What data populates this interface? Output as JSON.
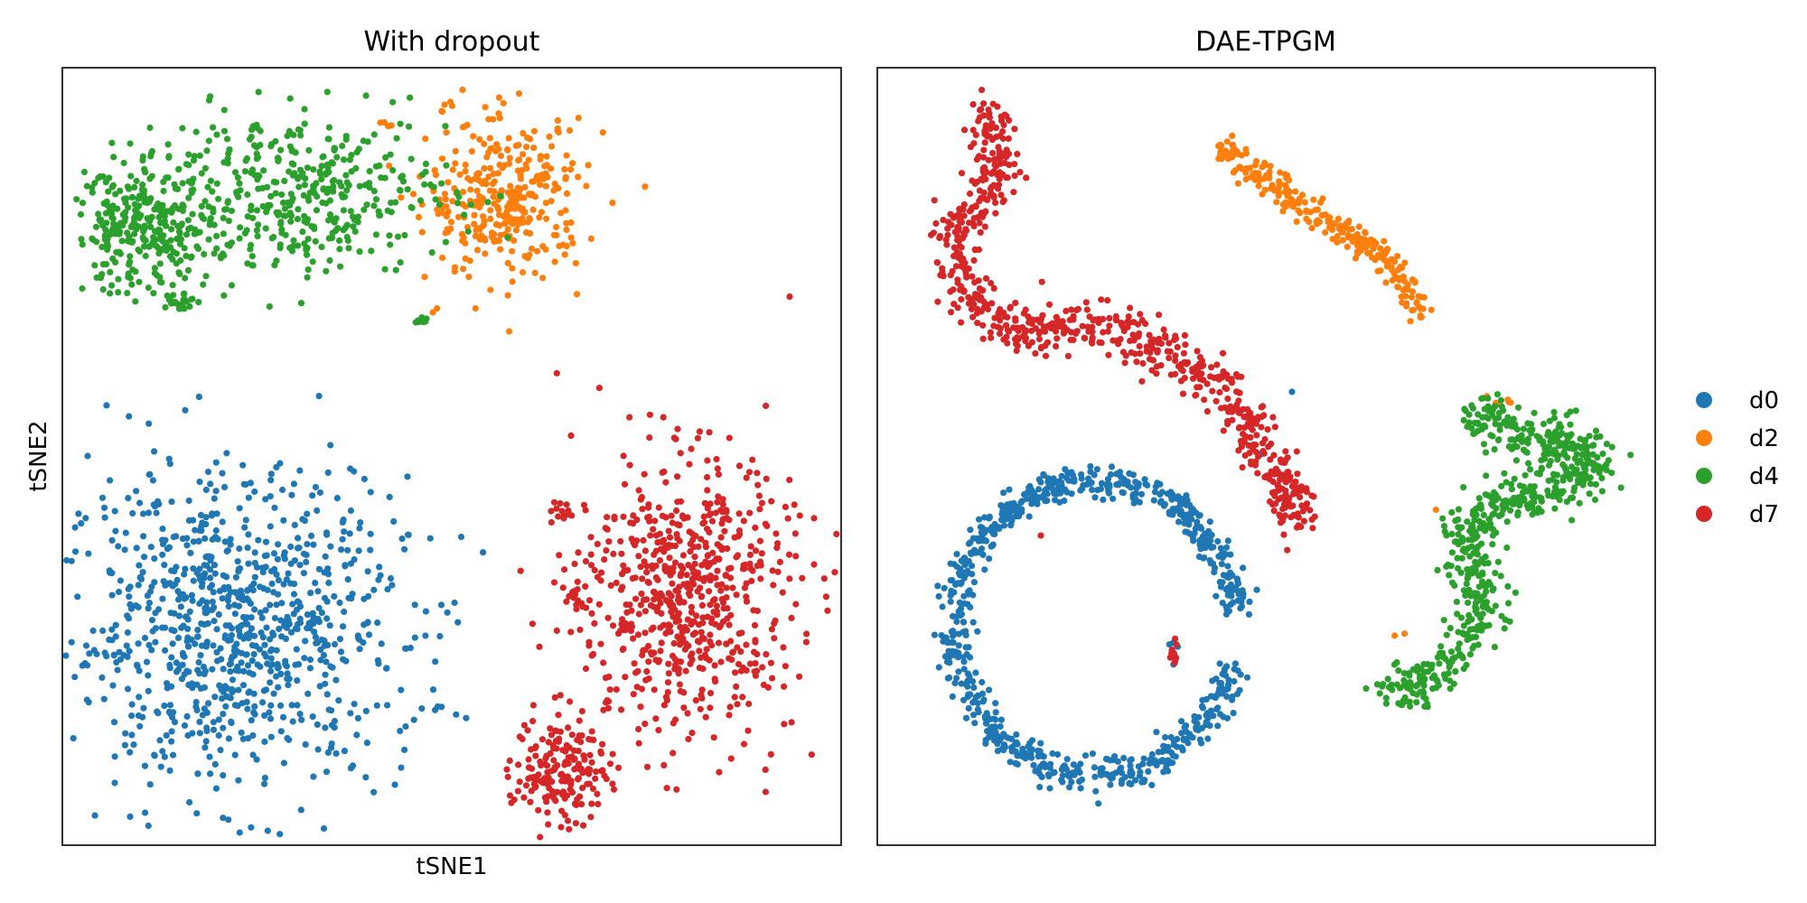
{
  "colors": {
    "d0": "#1f77b4",
    "d2": "#ff7f0e",
    "d4": "#2ca02c",
    "d7": "#d62728"
  },
  "legend": {
    "placement": "right-outside",
    "entries": [
      {
        "label": "d0",
        "color": "#1f77b4"
      },
      {
        "label": "d2",
        "color": "#ff7f0e"
      },
      {
        "label": "d4",
        "color": "#2ca02c"
      },
      {
        "label": "d7",
        "color": "#d62728"
      }
    ]
  },
  "chart_data": [
    {
      "type": "scatter",
      "title": "With dropout",
      "xlabel": "tSNE1",
      "ylabel": "tSNE2",
      "xlim": [
        0,
        100
      ],
      "ylim": [
        0,
        100
      ],
      "ticks_shown": false,
      "grid": false,
      "series": [
        {
          "name": "d0",
          "color": "#1f77b4",
          "clusters": [
            {
              "shape": "blob",
              "center": [
                22,
                28
              ],
              "spread": [
                11,
                10
              ],
              "count": 900
            },
            {
              "shape": "blob",
              "center": [
                48,
                18
              ],
              "spread": [
                0.6,
                0.5
              ],
              "count": 3
            },
            {
              "shape": "blob",
              "center": [
                44,
                15
              ],
              "spread": [
                0.6,
                0.5
              ],
              "count": 2
            }
          ]
        },
        {
          "name": "d2",
          "color": "#ff7f0e",
          "clusters": [
            {
              "shape": "blob",
              "center": [
                57,
                83
              ],
              "spread": [
                5,
                5
              ],
              "count": 330
            },
            {
              "shape": "blob",
              "center": [
                49,
                94.5
              ],
              "spread": [
                0.6,
                0.6
              ],
              "count": 5
            },
            {
              "shape": "blob",
              "center": [
                43,
                92.5
              ],
              "spread": [
                2.5,
                0.5
              ],
              "count": 4
            },
            {
              "shape": "blob",
              "center": [
                47.5,
                69
              ],
              "spread": [
                0.3,
                0.3
              ],
              "count": 2
            }
          ]
        },
        {
          "name": "d4",
          "color": "#2ca02c",
          "clusters": [
            {
              "shape": "blob",
              "center": [
                10,
                79
              ],
              "spread": [
                4.5,
                4
              ],
              "count": 280
            },
            {
              "shape": "blob",
              "center": [
                30,
                84
              ],
              "spread": [
                10,
                5
              ],
              "count": 420
            },
            {
              "shape": "blob",
              "center": [
                15,
                70
              ],
              "spread": [
                1,
                0.6
              ],
              "count": 25
            },
            {
              "shape": "blob",
              "center": [
                46,
                67.5
              ],
              "spread": [
                0.5,
                0.4
              ],
              "count": 8
            }
          ]
        },
        {
          "name": "d7",
          "color": "#d62728",
          "clusters": [
            {
              "shape": "blob",
              "center": [
                80,
                32
              ],
              "spread": [
                7,
                9
              ],
              "count": 650
            },
            {
              "shape": "blob",
              "center": [
                64,
                43
              ],
              "spread": [
                0.7,
                0.8
              ],
              "count": 12
            },
            {
              "shape": "blob",
              "center": [
                66,
                32
              ],
              "spread": [
                0.7,
                1
              ],
              "count": 14
            },
            {
              "shape": "blob",
              "center": [
                64,
                10
              ],
              "spread": [
                3,
                3.5
              ],
              "count": 180
            }
          ]
        }
      ]
    },
    {
      "type": "scatter",
      "title": "DAE-TPGM",
      "xlabel": "",
      "ylabel": "",
      "xlim": [
        0,
        100
      ],
      "ylim": [
        0,
        100
      ],
      "ticks_shown": false,
      "grid": false,
      "series": [
        {
          "name": "d0",
          "color": "#1f77b4",
          "clusters": [
            {
              "shape": "arc",
              "center": [
                28,
                28
              ],
              "radius": [
                18,
                19
              ],
              "angle_deg": [
                5,
                345
              ],
              "jitter": 1.2,
              "count": 800
            },
            {
              "shape": "blob",
              "center": [
                38,
                25.5
              ],
              "spread": [
                0.3,
                1
              ],
              "count": 5
            },
            {
              "shape": "blob",
              "center": [
                53,
                58
              ],
              "spread": [
                0.3,
                0.3
              ],
              "count": 1
            },
            {
              "shape": "blob",
              "center": [
                49,
                50.5
              ],
              "spread": [
                0.3,
                0.3
              ],
              "count": 1
            }
          ]
        },
        {
          "name": "d2",
          "color": "#ff7f0e",
          "clusters": [
            {
              "shape": "path",
              "points": [
                [
                  44,
                  90
                ],
                [
                  55,
                  82
                ],
                [
                  66,
                  75
                ],
                [
                  70,
                  68
                ]
              ],
              "jitter": 0.9,
              "count": 260
            },
            {
              "shape": "blob",
              "center": [
                80,
                57
              ],
              "spread": [
                1.2,
                0.5
              ],
              "count": 6
            },
            {
              "shape": "blob",
              "center": [
                72,
                43
              ],
              "spread": [
                0.3,
                0.3
              ],
              "count": 1
            },
            {
              "shape": "blob",
              "center": [
                67,
                27
              ],
              "spread": [
                0.5,
                0.5
              ],
              "count": 2
            }
          ]
        },
        {
          "name": "d4",
          "color": "#2ca02c",
          "clusters": [
            {
              "shape": "path",
              "points": [
                [
                  76,
                  56
                ],
                [
                  83,
                  52
                ],
                [
                  89,
                  52
                ],
                [
                  93,
                  49
                ],
                [
                  85,
                  45
                ],
                [
                  79,
                  44
                ],
                [
                  75,
                  40
                ],
                [
                  78,
                  33
                ],
                [
                  77,
                  27
                ],
                [
                  72,
                  22
                ],
                [
                  68,
                  20
                ],
                [
                  66,
                  19
                ]
              ],
              "jitter": 1.6,
              "count": 650
            }
          ]
        },
        {
          "name": "d7",
          "color": "#d62728",
          "clusters": [
            {
              "shape": "path",
              "points": [
                [
                  14,
                  95
                ],
                [
                  16,
                  87
                ],
                [
                  10,
                  79
                ],
                [
                  12,
                  70
                ],
                [
                  18,
                  66
                ],
                [
                  28,
                  67
                ],
                [
                  38,
                  63
                ],
                [
                  44,
                  59
                ],
                [
                  50,
                  51
                ],
                [
                  53,
                  43
                ],
                [
                  55,
                  41
                ]
              ],
              "jitter": 1.5,
              "count": 700
            },
            {
              "shape": "blob",
              "center": [
                38,
                24.5
              ],
              "spread": [
                0.4,
                1
              ],
              "count": 10
            },
            {
              "shape": "blob",
              "center": [
                21,
                40
              ],
              "spread": [
                0.3,
                0.3
              ],
              "count": 1
            }
          ]
        }
      ]
    }
  ]
}
